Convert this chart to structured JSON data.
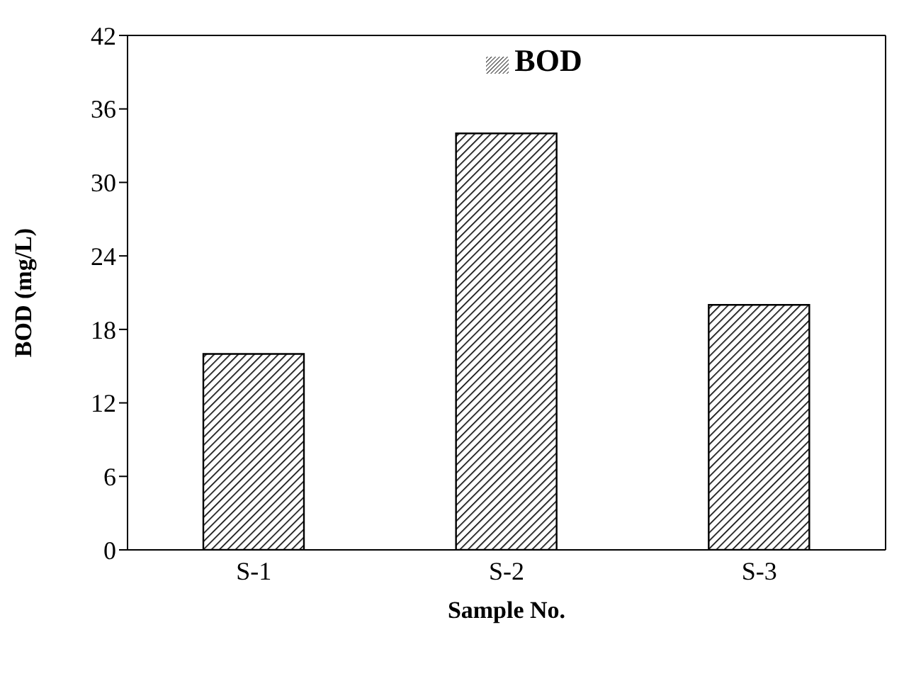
{
  "chart_data": {
    "type": "bar",
    "xlabel": "Sample No.",
    "ylabel": "BOD (mg/L)",
    "categories": [
      "S-1",
      "S-2",
      "S-3"
    ],
    "series": [
      {
        "name": "BOD",
        "color": "#000000",
        "values": [
          16,
          34,
          20
        ]
      }
    ],
    "ylim": [
      0,
      42
    ],
    "yticks": [
      0,
      6,
      12,
      18,
      24,
      30,
      36,
      42
    ],
    "grid": false,
    "legend": "top"
  }
}
